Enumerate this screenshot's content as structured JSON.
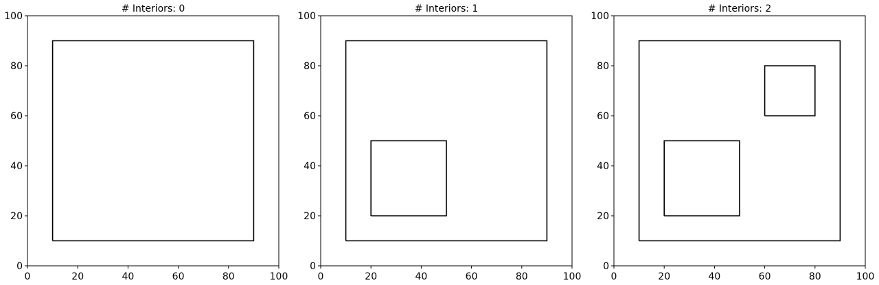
{
  "chart_data": [
    {
      "type": "polygon",
      "title": "# Interiors: 0",
      "xlabel": "",
      "ylabel": "",
      "xlim": [
        0,
        100
      ],
      "ylim": [
        0,
        100
      ],
      "xticks": [
        0,
        20,
        40,
        60,
        80,
        100
      ],
      "yticks": [
        0,
        20,
        40,
        60,
        80,
        100
      ],
      "grid": false,
      "exterior": [
        [
          10,
          10
        ],
        [
          90,
          10
        ],
        [
          90,
          90
        ],
        [
          10,
          90
        ],
        [
          10,
          10
        ]
      ],
      "interiors": []
    },
    {
      "type": "polygon",
      "title": "# Interiors: 1",
      "xlabel": "",
      "ylabel": "",
      "xlim": [
        0,
        100
      ],
      "ylim": [
        0,
        100
      ],
      "xticks": [
        0,
        20,
        40,
        60,
        80,
        100
      ],
      "yticks": [
        0,
        20,
        40,
        60,
        80,
        100
      ],
      "grid": false,
      "exterior": [
        [
          10,
          10
        ],
        [
          90,
          10
        ],
        [
          90,
          90
        ],
        [
          10,
          90
        ],
        [
          10,
          10
        ]
      ],
      "interiors": [
        [
          [
            20,
            20
          ],
          [
            50,
            20
          ],
          [
            50,
            50
          ],
          [
            20,
            50
          ],
          [
            20,
            20
          ]
        ]
      ]
    },
    {
      "type": "polygon",
      "title": "# Interiors: 2",
      "xlabel": "",
      "ylabel": "",
      "xlim": [
        0,
        100
      ],
      "ylim": [
        0,
        100
      ],
      "xticks": [
        0,
        20,
        40,
        60,
        80,
        100
      ],
      "yticks": [
        0,
        20,
        40,
        60,
        80,
        100
      ],
      "grid": false,
      "exterior": [
        [
          10,
          10
        ],
        [
          90,
          10
        ],
        [
          90,
          90
        ],
        [
          10,
          90
        ],
        [
          10,
          10
        ]
      ],
      "interiors": [
        [
          [
            20,
            20
          ],
          [
            50,
            20
          ],
          [
            50,
            50
          ],
          [
            20,
            50
          ],
          [
            20,
            20
          ]
        ],
        [
          [
            60,
            60
          ],
          [
            80,
            60
          ],
          [
            80,
            80
          ],
          [
            60,
            80
          ],
          [
            60,
            60
          ]
        ]
      ]
    }
  ]
}
